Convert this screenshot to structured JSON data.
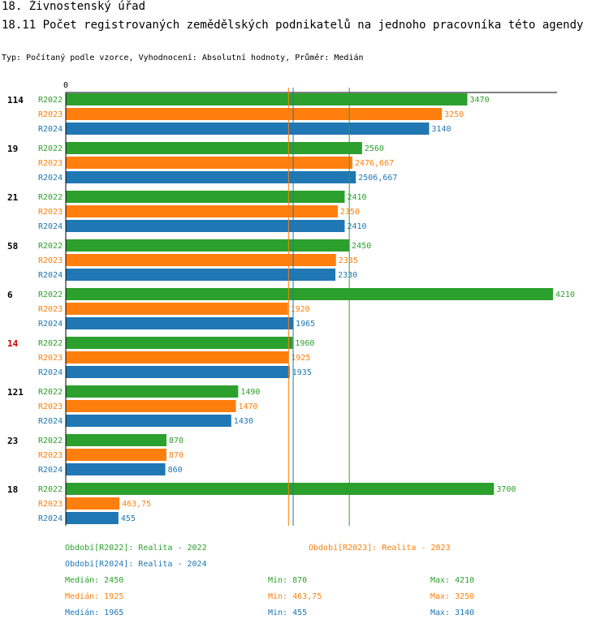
{
  "page": {
    "title1": "18. Živnostenský úřad",
    "title2": "18.11 Počet  registrovaných zemědělských podnikatelů na jednoho pracovníka  této agendy",
    "subtitle": "Typ: Počítaný podle vzorce, Vyhodnocení: Absolutní hodnoty, Průměr: Medián"
  },
  "chart_data": {
    "type": "bar",
    "orientation": "horizontal",
    "axis_zero_label": "0",
    "xlim": [
      0,
      4210
    ],
    "categories": [
      "114",
      "19",
      "21",
      "58",
      "6",
      "14",
      "121",
      "23",
      "18"
    ],
    "highlight_category": "14",
    "series": [
      {
        "name": "R2022",
        "color": "#2ca02c",
        "values": [
          3470,
          2560,
          2410,
          2450,
          4210,
          1960,
          1490,
          870,
          3700
        ],
        "labels": [
          "3470",
          "2560",
          "2410",
          "2450",
          "4210",
          "1960",
          "1490",
          "870",
          "3700"
        ]
      },
      {
        "name": "R2023",
        "color": "#ff7f0e",
        "values": [
          3250,
          2476.667,
          2350,
          2335,
          1920,
          1925,
          1470,
          870,
          463.75
        ],
        "labels": [
          "3250",
          "2476,667",
          "2350",
          "2335",
          "1920",
          "1925",
          "1470",
          "870",
          "463,75"
        ]
      },
      {
        "name": "R2024",
        "color": "#1f77b4",
        "values": [
          3140,
          2506.667,
          2410,
          2330,
          1965,
          1935,
          1430,
          860,
          455
        ],
        "labels": [
          "3140",
          "2506,667",
          "2410",
          "2330",
          "1965",
          "1935",
          "1430",
          "860",
          "455"
        ]
      }
    ],
    "median_lines": [
      {
        "series": "R2022",
        "value": 2450,
        "color": "#2ca02c"
      },
      {
        "series": "R2023",
        "value": 1925,
        "color": "#ff7f0e"
      },
      {
        "series": "R2024",
        "value": 1965,
        "color": "#1f77b4"
      }
    ]
  },
  "legend": {
    "periods": [
      {
        "text": "Období[R2022]: Realita - 2022",
        "color": "#2ca02c"
      },
      {
        "text": "Období[R2023]: Realita - 2023",
        "color": "#ff7f0e"
      },
      {
        "text": "Období[R2024]: Realita - 2024",
        "color": "#1f77b4"
      }
    ],
    "stats": [
      {
        "median": "Medián: 2450",
        "min": "Min: 870",
        "max": "Max: 4210",
        "color": "#2ca02c"
      },
      {
        "median": "Medián: 1925",
        "min": "Min: 463,75",
        "max": "Max: 3250",
        "color": "#ff7f0e"
      },
      {
        "median": "Medián: 1965",
        "min": "Min: 455",
        "max": "Max: 3140",
        "color": "#1f77b4"
      }
    ]
  }
}
